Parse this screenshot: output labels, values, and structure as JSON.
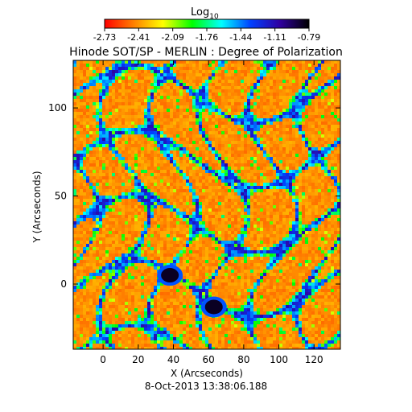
{
  "chart_data": {
    "type": "heatmap",
    "title": "Hinode SOT/SP - MERLIN : Degree of Polarization",
    "xlabel": "X (Arcseconds)",
    "ylabel": "Y (Arcseconds)",
    "xlim": [
      -17,
      135
    ],
    "ylim": [
      -37,
      127
    ],
    "x_ticks": [
      0,
      20,
      40,
      60,
      80,
      100,
      120
    ],
    "y_ticks": [
      0,
      50,
      100
    ],
    "footer": "8-Oct-2013 13:38:06.188",
    "colorbar": {
      "label_base": "Log",
      "label_sub": "10",
      "ticks": [
        "-2.73",
        "-2.41",
        "-2.09",
        "-1.76",
        "-1.44",
        "-1.11",
        "-0.79"
      ],
      "range": [
        -2.73,
        -0.79
      ],
      "colors": [
        "#ff0000",
        "#ff8000",
        "#ffff00",
        "#00ff00",
        "#00ffff",
        "#0040ff",
        "#3000a0",
        "#000000"
      ]
    },
    "features": [
      {
        "kind": "strong-polarization-patch",
        "x": 38,
        "y": 5,
        "log_value": -0.85
      },
      {
        "kind": "strong-polarization-patch",
        "x": 63,
        "y": -13,
        "log_value": -0.85
      }
    ]
  }
}
